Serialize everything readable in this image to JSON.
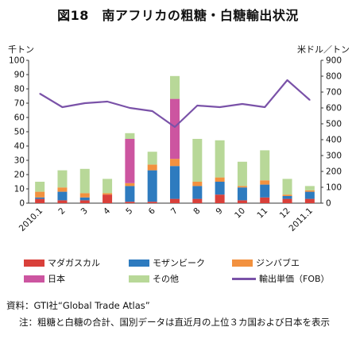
{
  "title": "図18　南アフリカの粗糖・白糖輸出状況",
  "chart_data": {
    "type": "bar",
    "stacked": true,
    "categories": [
      "2010.1",
      "2",
      "3",
      "4",
      "5",
      "6",
      "7",
      "8",
      "9",
      "10",
      "11",
      "12",
      "2011.1"
    ],
    "left_axis": {
      "unit": "千トン",
      "ylim": [
        0,
        100
      ],
      "ticks": [
        "0",
        "10",
        "20",
        "30",
        "40",
        "50",
        "60",
        "70",
        "80",
        "90",
        "100"
      ]
    },
    "right_axis": {
      "unit": "米ドル／トン",
      "ylim": [
        0,
        900
      ],
      "ticks": [
        "0",
        "100",
        "200",
        "300",
        "400",
        "500",
        "600",
        "700",
        "800",
        "900"
      ]
    },
    "series": [
      {
        "name": "マダガスカル",
        "color": "#d9403a",
        "values": [
          3,
          2,
          2,
          6,
          1,
          1,
          3,
          3,
          6,
          2,
          4,
          3,
          3
        ]
      },
      {
        "name": "モザンビーク",
        "color": "#2e7bbf",
        "values": [
          1,
          6,
          2,
          0,
          11,
          22,
          23,
          9,
          9,
          9,
          9,
          2,
          5
        ]
      },
      {
        "name": "ジンバブエ",
        "color": "#f2913f",
        "values": [
          4,
          3,
          3,
          1,
          2,
          4,
          5,
          3,
          3,
          1,
          3,
          1,
          1
        ]
      },
      {
        "name": "日本",
        "color": "#cc55a0",
        "values": [
          0,
          0,
          0,
          0,
          31,
          0,
          42,
          0,
          0,
          0,
          0,
          0,
          0
        ]
      },
      {
        "name": "その他",
        "color": "#b8d898",
        "values": [
          7,
          12,
          17,
          10,
          4,
          9,
          16,
          30,
          26,
          17,
          21,
          11,
          3
        ]
      }
    ],
    "line": {
      "name": "輸出単価（FOB）",
      "color": "#7a52a8",
      "axis": "right",
      "values": [
        690,
        605,
        630,
        640,
        600,
        580,
        480,
        615,
        605,
        625,
        605,
        775,
        650
      ]
    }
  },
  "legend_items": [
    "マダガスカル",
    "モザンビーク",
    "ジンバブエ",
    "日本",
    "その他",
    "輸出単価（FOB）"
  ],
  "source": "資料：GTI社“Global Trade Atlas”",
  "note": "注：粗糖と白糖の合計、国別データは直近月の上位３カ国および日本を表示"
}
